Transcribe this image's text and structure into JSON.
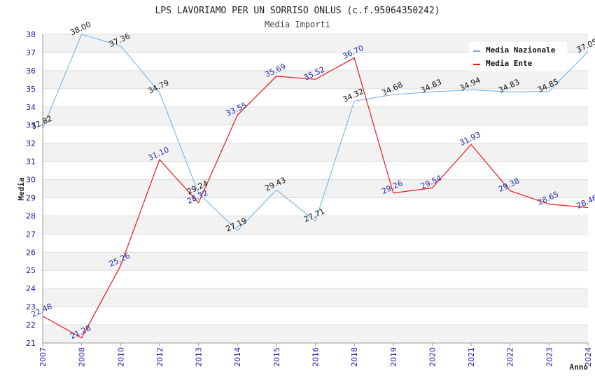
{
  "chart_data": {
    "type": "line",
    "title": "LPS LAVORIAMO PER UN SORRISO ONLUS (c.f.95064350242)",
    "subtitle": "Media Importi",
    "xlabel": "Anno",
    "ylabel": "Media",
    "categories": [
      "2007",
      "2008",
      "2010",
      "2012",
      "2013",
      "2014",
      "2015",
      "2016",
      "2018",
      "2019",
      "2020",
      "2021",
      "2022",
      "2023",
      "2024"
    ],
    "ylim": [
      21,
      38
    ],
    "yticks": [
      21,
      22,
      23,
      24,
      25,
      26,
      27,
      28,
      29,
      30,
      31,
      32,
      33,
      34,
      35,
      36,
      37,
      38
    ],
    "grid": "horizontal alternating bands",
    "legend_position": "top-right",
    "series": [
      {
        "name": "Media Nazionale",
        "color": "#6aaee6",
        "values": [
          32.82,
          38.0,
          37.36,
          34.79,
          29.24,
          27.19,
          29.43,
          27.71,
          34.32,
          34.68,
          34.83,
          34.94,
          34.83,
          34.85,
          37.05
        ],
        "labels": [
          "32.82",
          "38.00",
          "37.36",
          "34.79",
          "29.24",
          "27.19",
          "29.43",
          "27.71",
          "34.32",
          "34.68",
          "34.83",
          "34.94",
          "34.83",
          "34.85",
          "37.05"
        ]
      },
      {
        "name": "Media Ente",
        "color": "#e8191e",
        "values": [
          22.48,
          21.28,
          25.26,
          31.1,
          28.72,
          33.55,
          35.69,
          35.52,
          36.7,
          29.26,
          29.54,
          31.93,
          29.38,
          28.65,
          28.46
        ],
        "labels": [
          "22.48",
          "21.28",
          "25.26",
          "31.10",
          "28.72",
          "33.55",
          "35.69",
          "35.52",
          "36.70",
          "29.26",
          "29.54",
          "31.93",
          "29.38",
          "28.65",
          "28.46"
        ]
      }
    ]
  }
}
